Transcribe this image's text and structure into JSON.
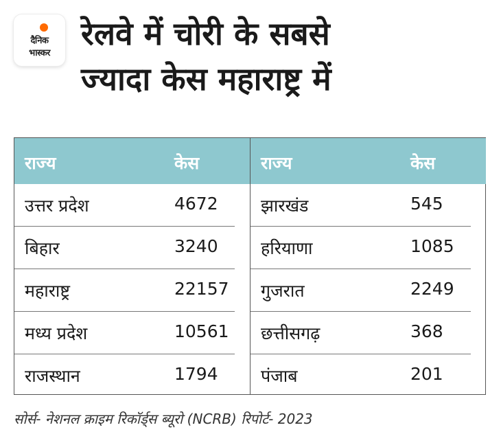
{
  "logo": {
    "line1": "दैनिक",
    "line2": "भास्कर"
  },
  "title": {
    "line1": "रेलवे में चोरी के सबसे",
    "line2": "ज्यादा केस महाराष्ट्र में"
  },
  "table": {
    "left": {
      "headers": [
        "राज्य",
        "केस"
      ],
      "rows": [
        {
          "state": "उत्तर प्रदेश",
          "cases": "4672"
        },
        {
          "state": "बिहार",
          "cases": "3240"
        },
        {
          "state": "महाराष्ट्र",
          "cases": "22157"
        },
        {
          "state": "मध्य प्रदेश",
          "cases": "10561"
        },
        {
          "state": "राजस्थान",
          "cases": "1794"
        }
      ]
    },
    "right": {
      "headers": [
        "राज्य",
        "केस"
      ],
      "rows": [
        {
          "state": "झारखंड",
          "cases": "545"
        },
        {
          "state": "हरियाणा",
          "cases": "1085"
        },
        {
          "state": "गुजरात",
          "cases": "2249"
        },
        {
          "state": "छत्तीसगढ़",
          "cases": "368"
        },
        {
          "state": "पंजाब",
          "cases": "201"
        }
      ]
    },
    "header_color": "#8ec8cf"
  },
  "source": "सोर्स-  नेशनल क्राइम रिकॉर्ड्स ब्यूरो (NCRB) रिपोर्ट- 2023",
  "colors": {
    "brand_accent": "#ff6a00",
    "header_bg": "#8ec8cf"
  }
}
